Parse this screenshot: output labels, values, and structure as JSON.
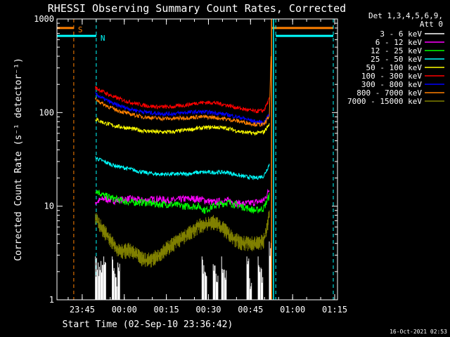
{
  "chart_data": {
    "type": "line",
    "title": "RHESSI Observing Summary Count Rates, Corrected",
    "xlabel": "Start Time (02-Sep-10 23:36:42)",
    "ylabel": "Corrected Count Rate (s⁻¹ detector⁻¹)",
    "y_scale": "log",
    "ylim": [
      1,
      1000
    ],
    "xlim_minutes": [
      -0.7,
      99.3
    ],
    "y_tick_labels": [
      "1",
      "10",
      "100",
      "1000"
    ],
    "x_ticks": [
      {
        "label": "23:45",
        "minutes": 8.3
      },
      {
        "label": "00:00",
        "minutes": 23.3
      },
      {
        "label": "00:15",
        "minutes": 38.3
      },
      {
        "label": "00:30",
        "minutes": 53.3
      },
      {
        "label": "00:45",
        "minutes": 68.3
      },
      {
        "label": "01:00",
        "minutes": 83.3
      },
      {
        "label": "01:15",
        "minutes": 98.3
      }
    ],
    "legend_header": [
      "Det 1,3,4,5,6,9,",
      "Att 0"
    ],
    "legend_placement": "right",
    "series": [
      {
        "name": "3 - 6 keV",
        "color": "#ffffff",
        "x": [
          13,
          14,
          15,
          16,
          19,
          20,
          21,
          51,
          52,
          55,
          56,
          58,
          59,
          67,
          68,
          71,
          72,
          75
        ],
        "y": [
          2.9,
          2.5,
          2.6,
          2.9,
          2.9,
          1.9,
          2.5,
          2.9,
          2.0,
          2.4,
          1.9,
          2.9,
          2.1,
          2.9,
          1.7,
          2.9,
          2.2,
          4.2
        ]
      },
      {
        "name": "6 - 12 keV",
        "color": "#ff00ff",
        "x": [
          13,
          16,
          20,
          25,
          30,
          35,
          40,
          45,
          50,
          55,
          60,
          65,
          70,
          73,
          75
        ],
        "y": [
          11,
          12,
          11.5,
          12,
          11.5,
          12,
          11.5,
          12,
          12,
          11,
          11.5,
          10.5,
          11,
          11.5,
          15
        ]
      },
      {
        "name": "12 - 25 keV",
        "color": "#00ff00",
        "x": [
          13,
          16,
          20,
          25,
          30,
          35,
          40,
          45,
          50,
          52,
          55,
          60,
          65,
          70,
          73,
          75
        ],
        "y": [
          15,
          13,
          12,
          11,
          11,
          10.5,
          10.5,
          10,
          10,
          9,
          10,
          11,
          10,
          9,
          9.5,
          13
        ]
      },
      {
        "name": "25 - 50 keV",
        "color": "#00ffff",
        "x": [
          13,
          16,
          20,
          25,
          30,
          35,
          40,
          45,
          50,
          55,
          60,
          65,
          70,
          73,
          75
        ],
        "y": [
          33,
          30,
          27,
          25,
          23,
          22,
          22,
          22,
          23,
          23,
          23,
          21,
          20,
          21,
          28
        ]
      },
      {
        "name": "50 - 100 keV",
        "color": "#ffff00",
        "x": [
          13,
          16,
          20,
          25,
          30,
          35,
          40,
          45,
          50,
          55,
          60,
          65,
          70,
          73,
          75
        ],
        "y": [
          85,
          78,
          72,
          68,
          64,
          62,
          62,
          65,
          68,
          70,
          68,
          62,
          60,
          62,
          75
        ]
      },
      {
        "name": "100 - 300 keV",
        "color": "#ff0000",
        "x": [
          13,
          16,
          20,
          25,
          30,
          35,
          40,
          45,
          50,
          55,
          60,
          65,
          70,
          73,
          75
        ],
        "y": [
          185,
          165,
          145,
          130,
          120,
          115,
          115,
          120,
          128,
          128,
          120,
          110,
          103,
          105,
          140
        ]
      },
      {
        "name": "300 - 800 keV",
        "color": "#0000ff",
        "x": [
          13,
          16,
          20,
          25,
          30,
          35,
          40,
          45,
          50,
          55,
          60,
          65,
          70,
          73,
          75
        ],
        "y": [
          158,
          140,
          122,
          110,
          102,
          98,
          97,
          100,
          102,
          100,
          95,
          88,
          80,
          78,
          96
        ]
      },
      {
        "name": "800 - 7000 keV",
        "color": "#ff8000",
        "x": [
          13,
          16,
          20,
          25,
          30,
          35,
          40,
          45,
          50,
          55,
          60,
          65,
          70,
          73,
          75
        ],
        "y": [
          140,
          122,
          108,
          97,
          90,
          87,
          86,
          88,
          90,
          89,
          85,
          80,
          75,
          74,
          92
        ]
      },
      {
        "name": "7000 - 15000 keV",
        "color": "#808000",
        "x": [
          13,
          15,
          17,
          19,
          21,
          23,
          25,
          27,
          30,
          33,
          35,
          37,
          40,
          42,
          45,
          48,
          50,
          52,
          55,
          58,
          60,
          62,
          65,
          68,
          70,
          72,
          73,
          74,
          75
        ],
        "y": [
          7.5,
          6,
          5,
          4,
          3.5,
          3.3,
          3.4,
          3.1,
          2.7,
          2.7,
          2.9,
          3.3,
          3.8,
          4.2,
          4.8,
          5.5,
          6.2,
          6.3,
          6.8,
          6.0,
          5.2,
          4.5,
          4.1,
          4.0,
          4.0,
          4.1,
          4.3,
          5.5,
          8.5
        ]
      }
    ],
    "annotations": [
      {
        "label": "S",
        "color": "#ff8000",
        "level": 800,
        "segments": [
          [
            -0.7,
            5.3
          ],
          [
            75.8,
            97.8
          ]
        ],
        "markers": [
          5.3,
          97.8
        ]
      },
      {
        "label": "N",
        "color": "#00ffff",
        "level": 660,
        "segments": [
          [
            -0.7,
            13.3
          ],
          [
            77.3,
            97.8
          ]
        ],
        "markers": [
          13.3,
          77.3,
          97.8
        ]
      }
    ],
    "event_lines": [
      {
        "color": "#ff8000",
        "minutes": 75.8
      },
      {
        "color": "#00ffff",
        "minutes": 76.5
      }
    ]
  },
  "footer": {
    "timestamp": "16-Oct-2021 02:53"
  }
}
